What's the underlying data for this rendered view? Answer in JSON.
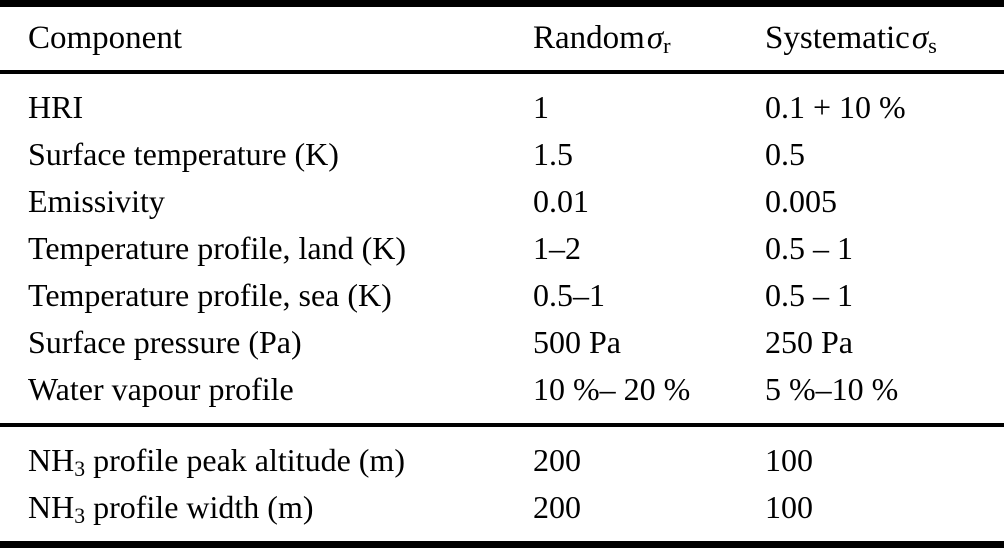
{
  "table": {
    "header": {
      "component": "Component",
      "random": {
        "label": "Random",
        "symbol": "σ",
        "subscript": "r"
      },
      "systematic": {
        "label": "Systematic",
        "symbol": "σ",
        "subscript": "s"
      }
    },
    "sections": [
      {
        "name": "atmospheric-and-surface-components",
        "rows": [
          {
            "component": "HRI",
            "random": "1",
            "systematic": "0.1 + 10 %"
          },
          {
            "component": "Surface temperature (K)",
            "random": "1.5",
            "systematic": "0.5"
          },
          {
            "component": "Emissivity",
            "random": "0.01",
            "systematic": "0.005"
          },
          {
            "component": "Temperature profile, land (K)",
            "random": "1–2",
            "systematic": "0.5 – 1"
          },
          {
            "component": "Temperature profile, sea (K)",
            "random": "0.5–1",
            "systematic": "0.5 – 1"
          },
          {
            "component": "Surface pressure (Pa)",
            "random": "500 Pa",
            "systematic": "250 Pa"
          },
          {
            "component": "Water vapour profile",
            "random": "10 %– 20 %",
            "systematic": "5 %–10 %"
          }
        ]
      },
      {
        "name": "nh3-profile-components",
        "rows": [
          {
            "component": [
              {
                "t": "NH"
              },
              {
                "t": "3",
                "sub": true
              },
              {
                "t": " profile peak altitude (m)"
              }
            ],
            "random": "200",
            "systematic": "100"
          },
          {
            "component": [
              {
                "t": "NH"
              },
              {
                "t": "3",
                "sub": true
              },
              {
                "t": " profile width (m)"
              }
            ],
            "random": "200",
            "systematic": "100"
          }
        ]
      }
    ],
    "colors": {
      "text": "#000000",
      "rule": "#000000",
      "background": "#ffffff"
    }
  }
}
